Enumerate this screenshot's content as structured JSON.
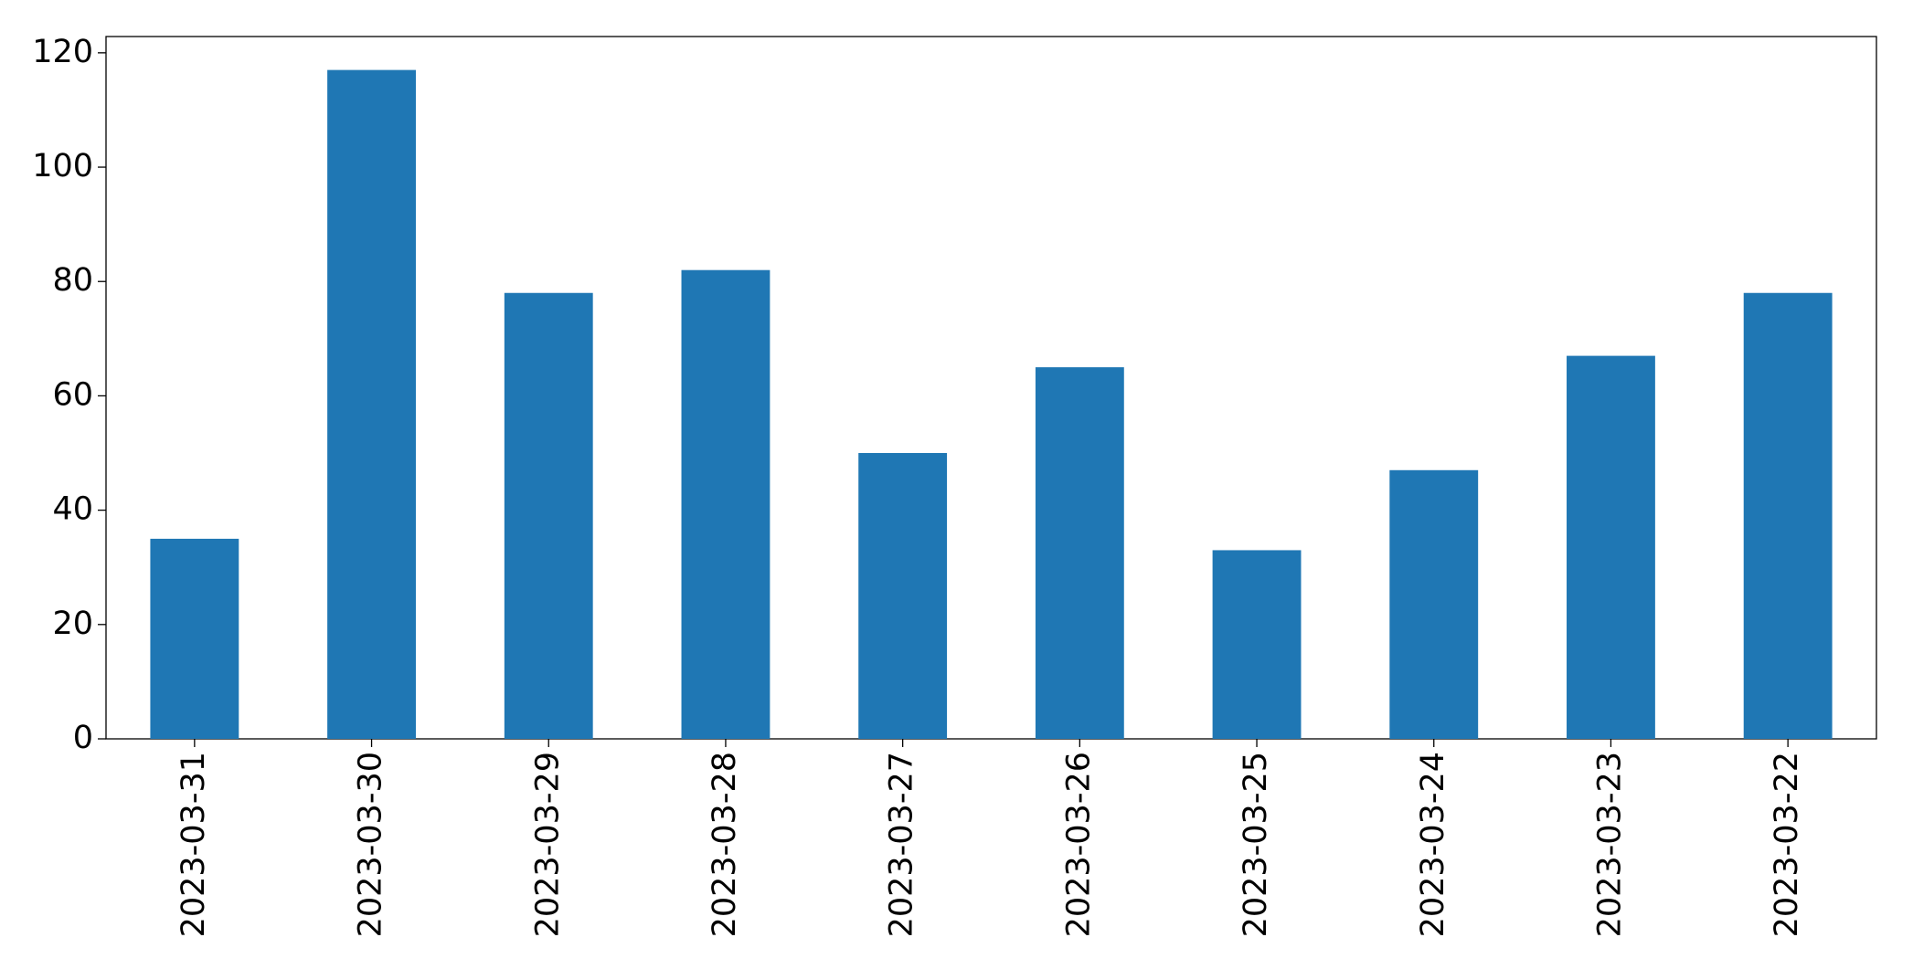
{
  "chart_data": {
    "type": "bar",
    "categories": [
      "2023-03-31",
      "2023-03-30",
      "2023-03-29",
      "2023-03-28",
      "2023-03-27",
      "2023-03-26",
      "2023-03-25",
      "2023-03-24",
      "2023-03-23",
      "2023-03-22"
    ],
    "values": [
      35,
      117,
      78,
      82,
      50,
      65,
      33,
      47,
      67,
      78
    ],
    "color": "#1f77b4",
    "ylim": [
      0,
      122.85
    ],
    "yticks": [
      0,
      20,
      40,
      60,
      80,
      100,
      120
    ],
    "grid": false
  }
}
